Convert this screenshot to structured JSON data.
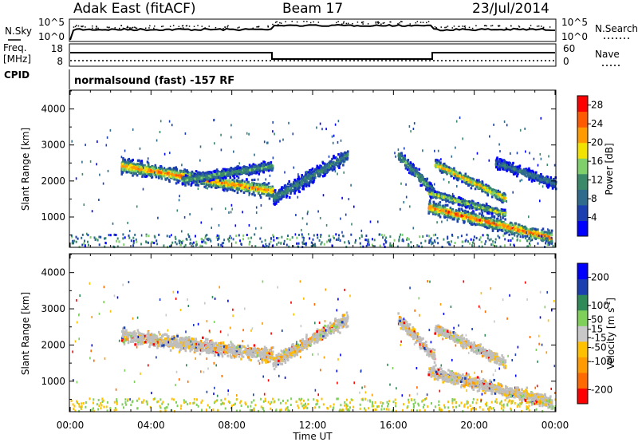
{
  "header": {
    "station": "Adak East (fitACF)",
    "beam": "Beam 17",
    "date": "23/Jul/2014"
  },
  "noise_panel": {
    "left_label": "N.Sky",
    "left_ticks": [
      "10^5",
      "10^0"
    ],
    "right_label": "N.Search",
    "right_ticks": [
      "10^5",
      "10^0"
    ]
  },
  "freq_panel": {
    "left_label_1": "Freq.",
    "left_label_2": "[MHz]",
    "left_ticks": [
      "18",
      "8"
    ],
    "right_label": "Nave",
    "right_ticks": [
      "60",
      "0"
    ],
    "cpid_label": "CPID",
    "cpid_text": "normalsound (fast) -157 RF"
  },
  "colors": {
    "power_scale": [
      "#0000ff",
      "#1b3fb0",
      "#2e6b8c",
      "#3a8a6a",
      "#7fcf6a",
      "#f2e200",
      "#ff9a00",
      "#ff5a00",
      "#ff0000"
    ],
    "velocity_scale": [
      "#ff0000",
      "#ff6a00",
      "#ff9a00",
      "#ffc000",
      "#c8c8c8",
      "#7fd05a",
      "#2e8b57",
      "#1b3fb0",
      "#0000ff"
    ],
    "ground_scatter": "#bebebe"
  },
  "chart_data": [
    {
      "type": "heatmap",
      "panel": "power",
      "ylabel": "Slant Range [km]",
      "xlabel": "",
      "x_range": [
        "00:00",
        "24:00"
      ],
      "ylim": [
        180,
        4500
      ],
      "y_ticks": [
        1000,
        2000,
        3000,
        4000
      ],
      "colorbar": {
        "label": "Power [dB]",
        "ticks": [
          4,
          8,
          12,
          16,
          20,
          24,
          28
        ],
        "range": [
          0,
          30
        ]
      },
      "bands": [
        {
          "t0": 2.5,
          "t1": 10.0,
          "r0": 2450,
          "r1": 1750,
          "w": 330,
          "peak": 24
        },
        {
          "t0": 5.5,
          "t1": 10.0,
          "r0": 2050,
          "r1": 2450,
          "w": 220,
          "peak": 14
        },
        {
          "t0": 10.0,
          "t1": 13.7,
          "r0": 1550,
          "r1": 2750,
          "w": 320,
          "peak": 12
        },
        {
          "t0": 16.2,
          "t1": 18.0,
          "r0": 2750,
          "r1": 1700,
          "w": 280,
          "peak": 14
        },
        {
          "t0": 17.7,
          "t1": 23.8,
          "r0": 1300,
          "r1": 450,
          "w": 290,
          "peak": 26
        },
        {
          "t0": 17.7,
          "t1": 21.5,
          "r0": 1700,
          "r1": 1120,
          "w": 180,
          "peak": 18
        },
        {
          "t0": 18.0,
          "t1": 21.5,
          "r0": 2500,
          "r1": 1550,
          "w": 230,
          "peak": 22
        },
        {
          "t0": 21.0,
          "t1": 24.0,
          "r0": 2550,
          "r1": 1950,
          "w": 240,
          "peak": 10
        }
      ]
    },
    {
      "type": "heatmap",
      "panel": "velocity",
      "ylabel": "Slant Range [km]",
      "xlabel": "Time UT",
      "x_range": [
        "00:00",
        "24:00"
      ],
      "x_ticks": [
        "00:00",
        "04:00",
        "08:00",
        "12:00",
        "16:00",
        "20:00",
        "00:00"
      ],
      "ylim": [
        180,
        4500
      ],
      "y_ticks": [
        1000,
        2000,
        3000,
        4000
      ],
      "colorbar": {
        "label": "Velocity [m s^-1]",
        "ticks": [
          -200,
          -100,
          -50,
          -15,
          15,
          50,
          100,
          200
        ],
        "range": [
          -250,
          250
        ]
      },
      "bands": [
        {
          "t0": 2.5,
          "t1": 10.0,
          "r0": 2300,
          "r1": 1750,
          "w": 330
        },
        {
          "t0": 10.0,
          "t1": 13.7,
          "r0": 1550,
          "r1": 2750,
          "w": 320
        },
        {
          "t0": 16.2,
          "t1": 18.0,
          "r0": 2750,
          "r1": 1700,
          "w": 280
        },
        {
          "t0": 17.7,
          "t1": 23.8,
          "r0": 1300,
          "r1": 450,
          "w": 290
        },
        {
          "t0": 18.0,
          "t1": 21.5,
          "r0": 2500,
          "r1": 1550,
          "w": 230
        }
      ]
    }
  ]
}
